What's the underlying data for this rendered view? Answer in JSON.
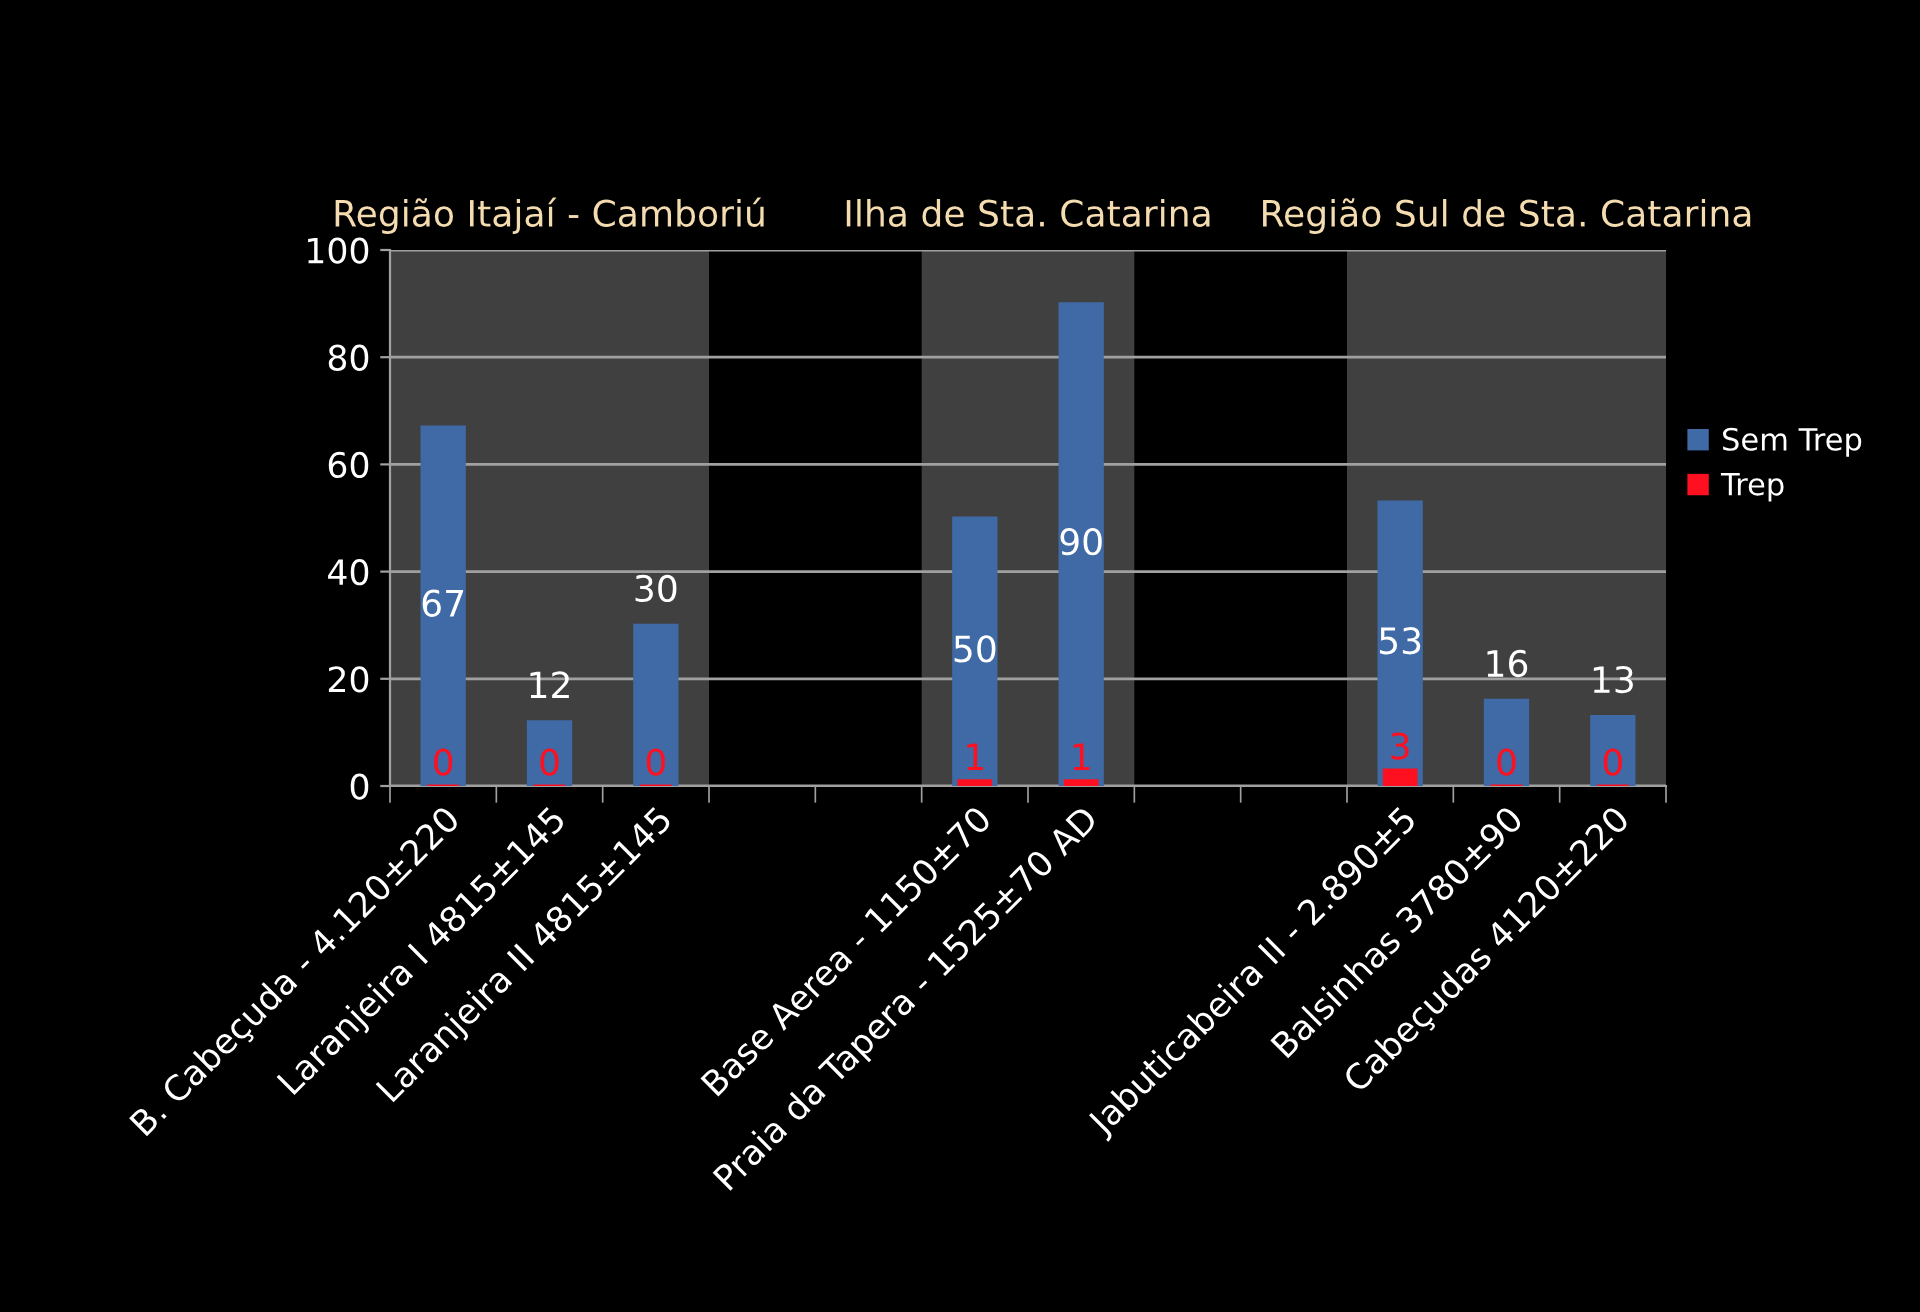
{
  "chart_data": {
    "type": "bar",
    "categories": [
      "B. Cabeçuda - 4.120±220",
      "Laranjeira I 4815±145",
      "Laranjeira II 4815±145",
      null,
      null,
      "Base Aerea - 1150±70",
      "Praia da Tapera - 1525±70 AD",
      null,
      null,
      "Jabuticabeira II - 2.890±5",
      "Balsinhas 3780±90",
      "Cabeçudas 4120±220"
    ],
    "series": [
      {
        "name": "Sem Trep",
        "color": "#3f6aa6",
        "values": [
          67,
          12,
          30,
          null,
          null,
          50,
          90,
          null,
          null,
          53,
          16,
          13
        ]
      },
      {
        "name": "Trep",
        "color": "#ff1020",
        "values": [
          0,
          0,
          0,
          null,
          null,
          1,
          1,
          null,
          null,
          3,
          0,
          0
        ]
      }
    ],
    "ylim": [
      0,
      100
    ],
    "yticks": [
      0,
      20,
      40,
      60,
      80,
      100
    ],
    "bands": [
      {
        "axis": "x",
        "from": "B. Cabeçuda - 4.120±220",
        "to": "Laranjeira II 4815±145",
        "label": "Região Itajaí - Camboriú",
        "color": "#404040"
      },
      {
        "axis": "x",
        "from": "Base Aerea - 1150±70",
        "to": "Praia da Tapera - 1525±70 AD",
        "label": "Ilha de Sta. Catarina",
        "color": "#404040"
      },
      {
        "axis": "x",
        "from": "Jabuticabeira II - 2.890±5",
        "to": "Cabeçudas 4120±220",
        "label": "Região Sul de Sta. Catarina",
        "color": "#404040"
      }
    ],
    "data_labels": true,
    "grid": "y",
    "legend": "right"
  }
}
